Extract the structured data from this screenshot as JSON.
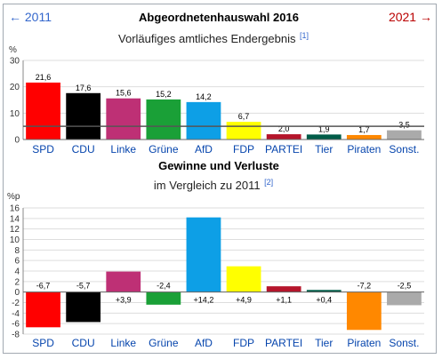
{
  "nav": {
    "prev": "← 2011",
    "next": "2021 →"
  },
  "chart_data": [
    {
      "type": "bar",
      "title": "Abgeordnetenhauswahl 2016",
      "subtitle": "Vorläufiges amtliches Endergebnis",
      "ref": "[1]",
      "unit": "%",
      "ylim": [
        0,
        30
      ],
      "yticks": [
        "0",
        "10",
        "20",
        "30"
      ],
      "threshold": 5,
      "categories": [
        "SPD",
        "CDU",
        "Linke",
        "Grüne",
        "AfD",
        "FDP",
        "PARTEI",
        "Tier",
        "Piraten",
        "Sonst."
      ],
      "values": [
        21.6,
        17.6,
        15.6,
        15.2,
        14.2,
        6.7,
        2.0,
        1.9,
        1.7,
        3.5
      ],
      "labels": [
        "21,6",
        "17,6",
        "15,6",
        "15,2",
        "14,2",
        "6,7",
        "2,0",
        "1,9",
        "1,7",
        "3,5"
      ],
      "colors": [
        "#ff0000",
        "#000000",
        "#be3075",
        "#1aa037",
        "#0d9fe6",
        "#ffff00",
        "#b5152b",
        "#005c48",
        "#ff8800",
        "#aaaaaa"
      ],
      "grid": true
    },
    {
      "type": "bar",
      "title": "Gewinne und Verluste",
      "subtitle": "im Vergleich zu 2011",
      "ref": "[2]",
      "unit": "%p",
      "ylim": [
        -8,
        16
      ],
      "yticks": [
        "-8",
        "-6",
        "-4",
        "-2",
        "0",
        "2",
        "4",
        "6",
        "8",
        "10",
        "12",
        "14",
        "16"
      ],
      "categories": [
        "SPD",
        "CDU",
        "Linke",
        "Grüne",
        "AfD",
        "FDP",
        "PARTEI",
        "Tier",
        "Piraten",
        "Sonst."
      ],
      "values": [
        -6.7,
        -5.7,
        3.9,
        -2.4,
        14.2,
        4.9,
        1.1,
        0.4,
        -7.2,
        -2.5
      ],
      "labels": [
        "-6,7",
        "-5,7",
        "+3,9",
        "-2,4",
        "+14,2",
        "+4,9",
        "+1,1",
        "+0,4",
        "-7,2",
        "-2,5"
      ],
      "colors": [
        "#ff0000",
        "#000000",
        "#be3075",
        "#1aa037",
        "#0d9fe6",
        "#ffff00",
        "#b5152b",
        "#005c48",
        "#ff8800",
        "#aaaaaa"
      ],
      "grid": true
    }
  ]
}
